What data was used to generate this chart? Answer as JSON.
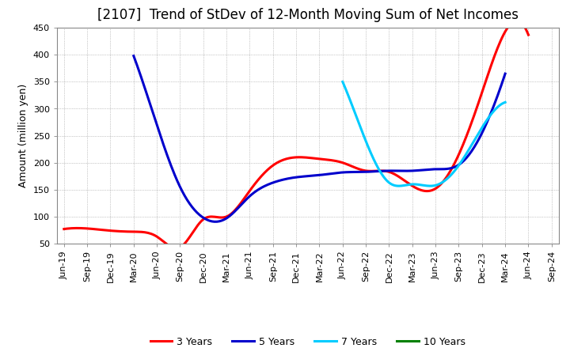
{
  "title": "[2107]  Trend of StDev of 12-Month Moving Sum of Net Incomes",
  "ylabel": "Amount (million yen)",
  "background_color": "#ffffff",
  "x_labels": [
    "Jun-19",
    "Sep-19",
    "Dec-19",
    "Mar-20",
    "Jun-20",
    "Sep-20",
    "Dec-20",
    "Mar-21",
    "Jun-21",
    "Sep-21",
    "Dec-21",
    "Mar-22",
    "Jun-22",
    "Sep-22",
    "Dec-22",
    "Mar-23",
    "Jun-23",
    "Sep-23",
    "Dec-23",
    "Mar-24",
    "Jun-24",
    "Sep-24"
  ],
  "series": [
    {
      "label": "3 Years",
      "color": "#ff0000",
      "values": [
        77,
        78,
        74,
        72,
        63,
        43,
        95,
        100,
        148,
        195,
        210,
        207,
        200,
        185,
        183,
        157,
        152,
        215,
        330,
        443,
        437,
        null
      ]
    },
    {
      "label": "5 Years",
      "color": "#0000cc",
      "values": [
        null,
        null,
        null,
        398,
        270,
        155,
        98,
        97,
        138,
        163,
        173,
        177,
        182,
        183,
        185,
        185,
        188,
        196,
        255,
        365,
        null,
        null
      ]
    },
    {
      "label": "7 Years",
      "color": "#00ccff",
      "values": [
        null,
        null,
        null,
        null,
        null,
        null,
        null,
        null,
        null,
        null,
        null,
        null,
        350,
        240,
        163,
        160,
        158,
        195,
        265,
        312,
        null,
        null
      ]
    },
    {
      "label": "10 Years",
      "color": "#008000",
      "values": [
        null,
        null,
        null,
        null,
        null,
        null,
        null,
        null,
        null,
        null,
        null,
        null,
        null,
        null,
        null,
        null,
        null,
        null,
        null,
        null,
        null,
        null
      ]
    }
  ],
  "ylim": [
    50,
    450
  ],
  "yticks": [
    50,
    100,
    150,
    200,
    250,
    300,
    350,
    400,
    450
  ],
  "title_fontsize": 12,
  "ylabel_fontsize": 9,
  "tick_fontsize": 8,
  "linewidth": 2.2,
  "legend_fontsize": 9
}
